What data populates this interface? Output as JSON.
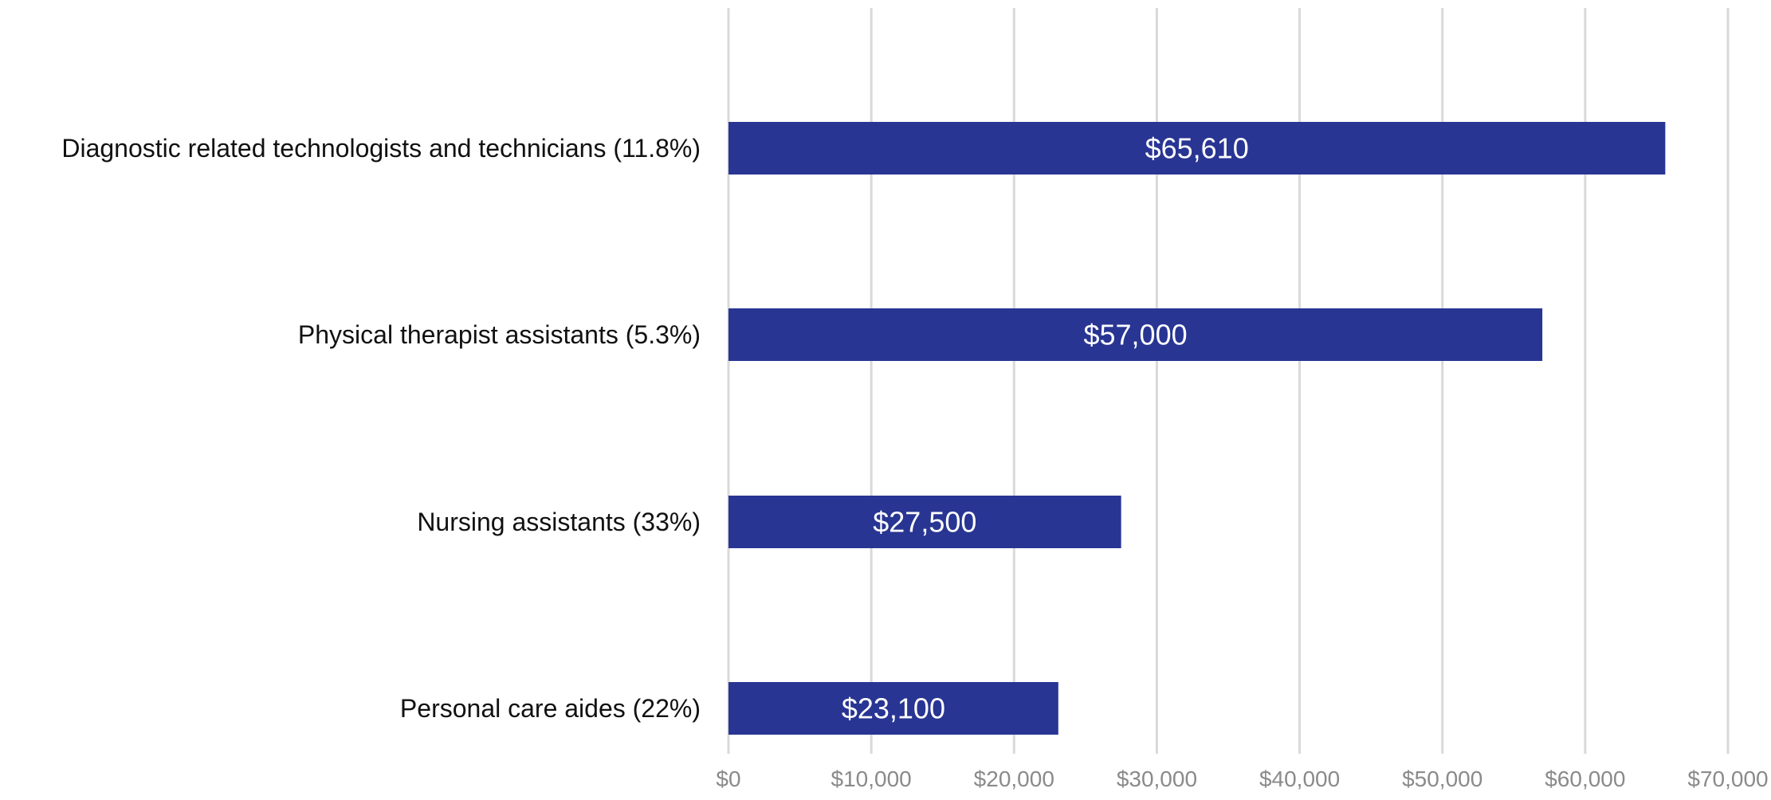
{
  "chart_data": {
    "type": "bar",
    "orientation": "horizontal",
    "title": "",
    "xlabel": "",
    "ylabel": "",
    "categories": [
      "Diagnostic related technologists and technicians (11.8%)",
      "Physical therapist assistants (5.3%)",
      "Nursing assistants (33%)",
      "Personal care aides (22%)"
    ],
    "values": [
      65610,
      57000,
      27500,
      23100
    ],
    "data_labels": [
      "$65,610",
      "$57,000",
      "$27,500",
      "$23,100"
    ],
    "xlim": [
      0,
      70000
    ],
    "x_ticks": [
      0,
      10000,
      20000,
      30000,
      40000,
      50000,
      60000,
      70000
    ],
    "x_tick_labels": [
      "$0",
      "$10,000",
      "$20,000",
      "$30,000",
      "$40,000",
      "$50,000",
      "$60,000",
      "$70,000"
    ],
    "grid": "vertical",
    "legend": "none",
    "bar_color": "#283593",
    "data_label_color": "#ffffff",
    "gridline_color": "#d9d9d9",
    "tick_label_color": "#8a8a8a",
    "category_label_color": "#111111"
  }
}
